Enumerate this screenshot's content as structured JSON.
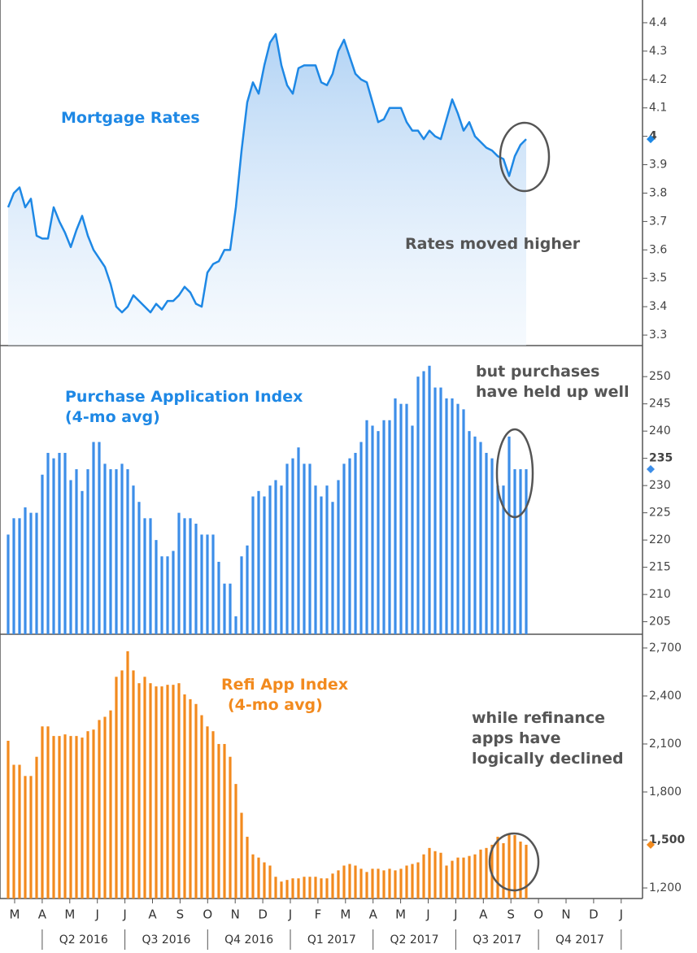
{
  "chart_data": [
    {
      "type": "line",
      "color": "#1e88e5",
      "annotations": [
        {
          "lines": [
            "Mortgage Rates"
          ],
          "color": "#1e88e5"
        },
        {
          "lines": [
            "Rates moved higher"
          ],
          "color": "#555555"
        }
      ],
      "values": [
        3.75,
        3.8,
        3.82,
        3.75,
        3.78,
        3.65,
        3.64,
        3.64,
        3.75,
        3.7,
        3.66,
        3.61,
        3.67,
        3.72,
        3.65,
        3.6,
        3.57,
        3.54,
        3.48,
        3.4,
        3.38,
        3.4,
        3.44,
        3.42,
        3.4,
        3.38,
        3.41,
        3.39,
        3.42,
        3.42,
        3.44,
        3.47,
        3.45,
        3.41,
        3.4,
        3.52,
        3.55,
        3.56,
        3.6,
        3.6,
        3.75,
        3.95,
        4.12,
        4.19,
        4.15,
        4.25,
        4.33,
        4.36,
        4.25,
        4.18,
        4.15,
        4.24,
        4.25,
        4.25,
        4.25,
        4.19,
        4.18,
        4.22,
        4.3,
        4.34,
        4.28,
        4.22,
        4.2,
        4.19,
        4.12,
        4.05,
        4.06,
        4.1,
        4.1,
        4.1,
        4.05,
        4.02,
        4.02,
        3.99,
        4.02,
        4.0,
        3.99,
        4.06,
        4.13,
        4.08,
        4.02,
        4.05,
        4.0,
        3.98,
        3.96,
        3.95,
        3.93,
        3.92,
        3.86,
        3.93,
        3.97,
        3.99
      ],
      "ylim": [
        3.263,
        4.48
      ],
      "yticks": [
        {
          "value": 3.3,
          "label": "3.3"
        },
        3.4,
        3.5,
        3.6,
        3.7,
        3.8,
        3.9,
        4,
        4.1,
        4.2,
        4.3,
        4.4
      ]
    },
    {
      "type": "bar",
      "color": "#3d8ee8",
      "annotations": [
        {
          "lines": [
            "Purchase Application Index",
            "(4-mo avg)"
          ],
          "color": "#1e88e5"
        },
        {
          "lines": [
            "but purchases",
            "have held up well"
          ],
          "color": "#555555"
        }
      ],
      "values": [
        221,
        224,
        224,
        226,
        225,
        225,
        232,
        236,
        235,
        236,
        236,
        231,
        233,
        229,
        233,
        238,
        238,
        234,
        233,
        233,
        234,
        233,
        230,
        227,
        224,
        224,
        220,
        217,
        217,
        218,
        225,
        224,
        224,
        223,
        221,
        221,
        221,
        216,
        212,
        212,
        206,
        217,
        219,
        228,
        229,
        228,
        230,
        231,
        230,
        234,
        235,
        237,
        234,
        234,
        230,
        228,
        230,
        227,
        231,
        234,
        235,
        236,
        238,
        242,
        241,
        240,
        242,
        242,
        246,
        245,
        245,
        241,
        250,
        251,
        252,
        248,
        248,
        246,
        246,
        245,
        244,
        240,
        239,
        238,
        236,
        235,
        230,
        230,
        239,
        233,
        233,
        233
      ],
      "ylim": [
        202.7,
        255.7
      ],
      "yticks": [
        205,
        210,
        215,
        220,
        225,
        230,
        235,
        240,
        245,
        250
      ]
    },
    {
      "type": "bar",
      "color": "#f28a1e",
      "annotations": [
        {
          "lines": [
            "Refi App Index",
            "(4-mo avg)"
          ],
          "color": "#f28a1e"
        },
        {
          "lines": [
            "while refinance",
            "apps have",
            "logically declined"
          ],
          "color": "#555555"
        }
      ],
      "values": [
        2120,
        1970,
        1970,
        1900,
        1900,
        2020,
        2210,
        2210,
        2150,
        2150,
        2160,
        2150,
        2150,
        2140,
        2180,
        2190,
        2250,
        2270,
        2310,
        2520,
        2560,
        2680,
        2560,
        2480,
        2520,
        2480,
        2460,
        2460,
        2470,
        2470,
        2480,
        2410,
        2380,
        2350,
        2280,
        2210,
        2180,
        2100,
        2100,
        2020,
        1850,
        1670,
        1520,
        1410,
        1390,
        1360,
        1340,
        1270,
        1240,
        1250,
        1260,
        1260,
        1270,
        1270,
        1270,
        1260,
        1260,
        1290,
        1310,
        1340,
        1350,
        1340,
        1320,
        1300,
        1320,
        1320,
        1310,
        1320,
        1310,
        1320,
        1340,
        1350,
        1360,
        1410,
        1450,
        1430,
        1420,
        1340,
        1370,
        1390,
        1390,
        1400,
        1410,
        1440,
        1450,
        1470,
        1520,
        1480,
        1540,
        1530,
        1490,
        1470
      ],
      "ylim": [
        1134,
        2786
      ],
      "yticks": [
        {
          "value": 1200,
          "label": "1,200"
        },
        {
          "value": 1500,
          "label": "1,500"
        },
        {
          "value": 1800,
          "label": "1,800"
        },
        {
          "value": 2100,
          "label": "2,100"
        },
        {
          "value": 2400,
          "label": "2,400"
        },
        {
          "value": 2700,
          "label": "2,700"
        }
      ]
    }
  ],
  "x_axis": {
    "months": [
      "M",
      "A",
      "M",
      "J",
      "J",
      "A",
      "S",
      "O",
      "N",
      "D",
      "J",
      "F",
      "M",
      "A",
      "M",
      "J",
      "J",
      "A",
      "S",
      "O",
      "N",
      "D",
      "J"
    ],
    "quarters": [
      "Q2 2016",
      "Q3 2016",
      "Q4 2016",
      "Q1 2017",
      "Q2 2017",
      "Q3 2017",
      "Q4 2017"
    ]
  }
}
